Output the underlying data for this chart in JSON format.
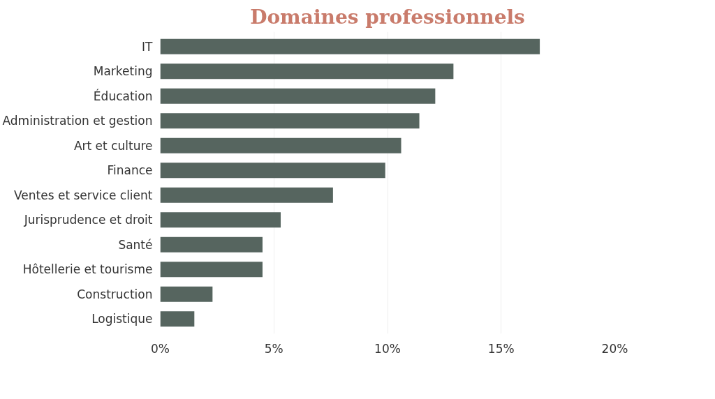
{
  "chart_data": {
    "type": "bar",
    "orientation": "horizontal",
    "title": "Domaines professionnels",
    "categories": [
      "IT",
      "Marketing",
      "Éducation",
      "Administration et gestion",
      "Art et culture",
      "Finance",
      "Ventes et service client",
      "Jurisprudence et droit",
      "Santé",
      "Hôtellerie et tourisme",
      "Construction",
      "Logistique"
    ],
    "values": [
      16.7,
      12.9,
      12.1,
      11.4,
      10.6,
      9.9,
      7.6,
      5.3,
      4.5,
      4.5,
      2.3,
      1.5
    ],
    "color": "#56655f",
    "xlim": [
      0,
      20
    ],
    "xticks": [
      {
        "value": 0,
        "label": "0%"
      },
      {
        "value": 5,
        "label": "5%"
      },
      {
        "value": 10,
        "label": "10%"
      },
      {
        "value": 15,
        "label": "15%"
      },
      {
        "value": 20,
        "label": "20%"
      }
    ],
    "grid": "x"
  }
}
